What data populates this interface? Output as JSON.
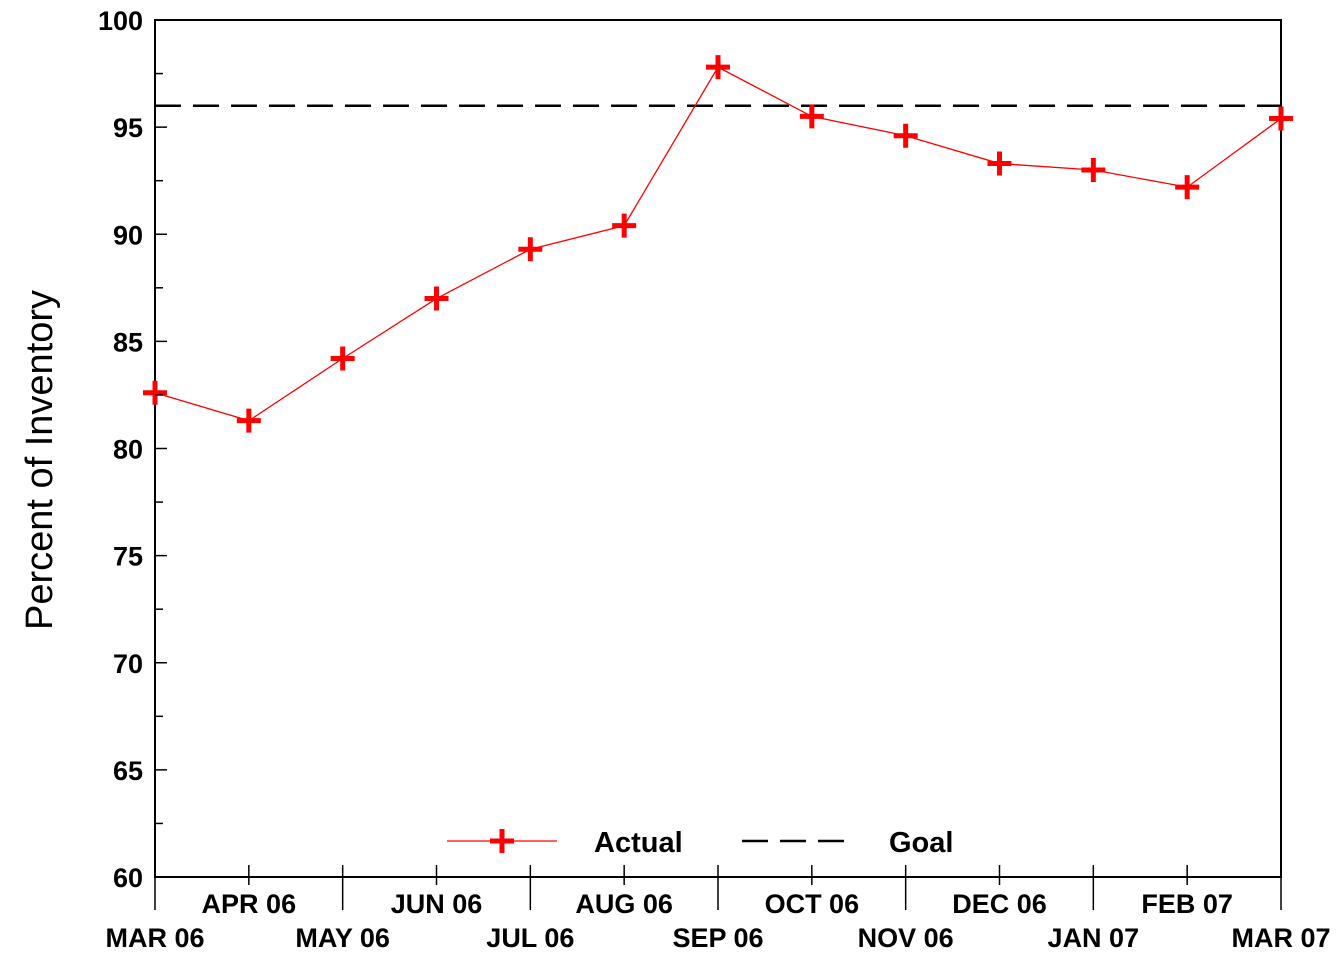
{
  "chart_data": {
    "type": "line",
    "title": "",
    "xlabel": "",
    "ylabel": "Percent of Inventory",
    "ylim": [
      60,
      100
    ],
    "yticks": [
      60,
      65,
      70,
      75,
      80,
      85,
      90,
      95,
      100
    ],
    "categories": [
      "MAR 06",
      "APR 06",
      "MAY 06",
      "JUN 06",
      "JUL 06",
      "AUG 06",
      "SEP 06",
      "OCT 06",
      "NOV 06",
      "DEC 06",
      "JAN 07",
      "FEB 07",
      "MAR 07"
    ],
    "series": [
      {
        "name": "Actual",
        "color": "#ff0000",
        "marker": "plus",
        "values": [
          82.6,
          81.3,
          84.2,
          87.0,
          89.3,
          90.4,
          97.8,
          95.5,
          94.6,
          93.3,
          93.0,
          92.2,
          95.4
        ]
      },
      {
        "name": "Goal",
        "color": "#000000",
        "style": "dashed",
        "value": 96
      }
    ],
    "legend_placement": "bottom-center",
    "grid": false
  }
}
